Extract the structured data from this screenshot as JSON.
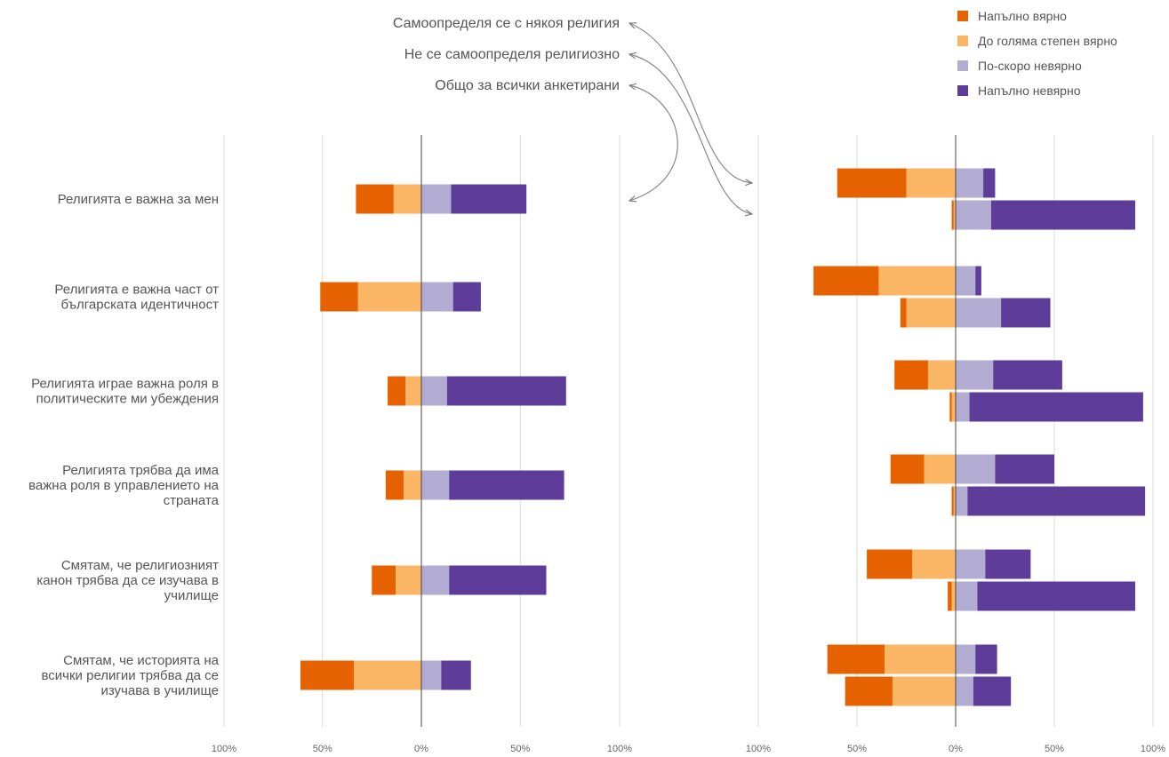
{
  "chart_data": {
    "type": "bar",
    "subtype": "diverging-stacked",
    "legend": {
      "placement": "top-right",
      "entries": [
        {
          "name": "Напълно вярно",
          "color": "#e66100"
        },
        {
          "name": "До голяма степен вярно",
          "color": "#fbb665"
        },
        {
          "name": "По-скоро невярно",
          "color": "#b2abd2"
        },
        {
          "name": "Напълно невярно",
          "color": "#5e3c99"
        }
      ]
    },
    "annotations": [
      "Самоопределя се с някоя религия",
      "Не се самоопределя религиозно",
      "Общо за всички анкетирани"
    ],
    "categories": [
      "Религията е важна за мен",
      "Религията е важна част от българската идентичност",
      "Религията играе важна роля в политическите ми убеждения",
      "Религията трябва да има важна роля в управлението на страната",
      "Смятам, че религиозният канон трябва да се изучава в училище",
      "Смятам, че историята на всички религии трябва да се изучава в училище"
    ],
    "category_lines": [
      [
        "Религията е важна за мен"
      ],
      [
        "Религията е важна част от",
        "българската идентичност"
      ],
      [
        "Религията играе важна роля в",
        "политическите ми убеждения"
      ],
      [
        "Религията трябва да има",
        "важна роля в управлението на",
        "страната"
      ],
      [
        "Смятам, че религиозният",
        "канон трябва да се изучава в",
        "училище"
      ],
      [
        "Смятам, че историята на",
        "всички религии трябва да се",
        "изучава в училище"
      ]
    ],
    "xlim": [
      -100,
      100
    ],
    "x_ticks": [
      "100%",
      "50%",
      "0%",
      "50%",
      "100%"
    ],
    "grid": true,
    "panels": [
      {
        "group": "Общо за всички анкетирани",
        "rows": [
          {
            "fully_true": 19,
            "mostly_true": 14,
            "rather_false": 15,
            "fully_false": 38
          },
          {
            "fully_true": 19,
            "mostly_true": 32,
            "rather_false": 16,
            "fully_false": 14
          },
          {
            "fully_true": 9,
            "mostly_true": 8,
            "rather_false": 13,
            "fully_false": 60
          },
          {
            "fully_true": 9,
            "mostly_true": 9,
            "rather_false": 14,
            "fully_false": 58
          },
          {
            "fully_true": 12,
            "mostly_true": 13,
            "rather_false": 14,
            "fully_false": 49
          },
          {
            "fully_true": 27,
            "mostly_true": 34,
            "rather_false": 10,
            "fully_false": 15
          }
        ]
      },
      {
        "groups": [
          {
            "group": "Самоопределя се с някоя религия",
            "rows": [
              {
                "fully_true": 35,
                "mostly_true": 25,
                "rather_false": 14,
                "fully_false": 6
              },
              {
                "fully_true": 33,
                "mostly_true": 39,
                "rather_false": 10,
                "fully_false": 3
              },
              {
                "fully_true": 17,
                "mostly_true": 14,
                "rather_false": 19,
                "fully_false": 35
              },
              {
                "fully_true": 17,
                "mostly_true": 16,
                "rather_false": 20,
                "fully_false": 30
              },
              {
                "fully_true": 23,
                "mostly_true": 22,
                "rather_false": 15,
                "fully_false": 23
              },
              {
                "fully_true": 29,
                "mostly_true": 36,
                "rather_false": 10,
                "fully_false": 11
              }
            ]
          },
          {
            "group": "Не се самоопределя религиозно",
            "rows": [
              {
                "fully_true": 1,
                "mostly_true": 1,
                "rather_false": 18,
                "fully_false": 73
              },
              {
                "fully_true": 3,
                "mostly_true": 25,
                "rather_false": 23,
                "fully_false": 25
              },
              {
                "fully_true": 1,
                "mostly_true": 2,
                "rather_false": 7,
                "fully_false": 88
              },
              {
                "fully_true": 1,
                "mostly_true": 1,
                "rather_false": 6,
                "fully_false": 90
              },
              {
                "fully_true": 2,
                "mostly_true": 2,
                "rather_false": 11,
                "fully_false": 80
              },
              {
                "fully_true": 24,
                "mostly_true": 32,
                "rather_false": 9,
                "fully_false": 19
              }
            ]
          }
        ]
      }
    ]
  }
}
